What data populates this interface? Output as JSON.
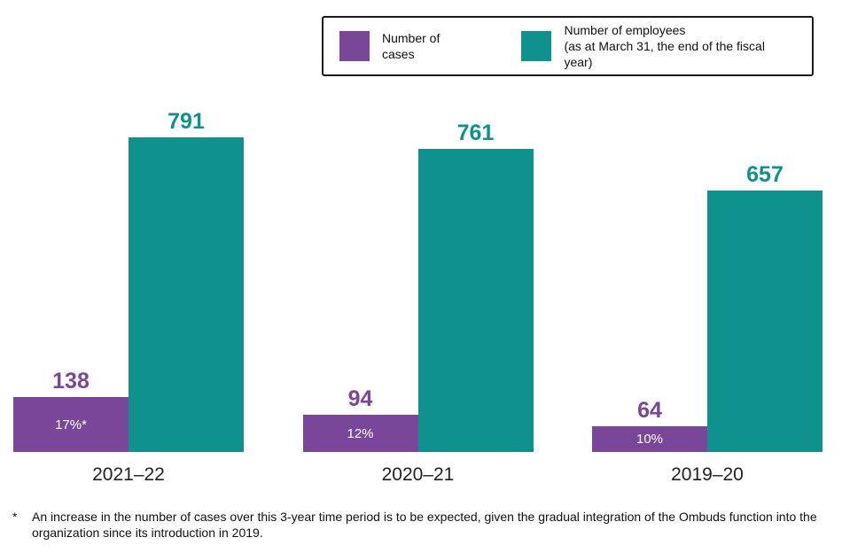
{
  "legend": {
    "items": [
      {
        "label_line1": "Number of cases",
        "label_line2": "",
        "color": "#7A4699"
      },
      {
        "label_line1": "Number of employees",
        "label_line2": "(as at March 31, the end of the fiscal year)",
        "color": "#0F928E"
      }
    ]
  },
  "chart_data": {
    "type": "bar",
    "categories": [
      "2021–22",
      "2020–21",
      "2019–20"
    ],
    "series": [
      {
        "name": "Number of cases",
        "color": "#7A4699",
        "values": [
          138,
          94,
          64
        ],
        "bar_labels": [
          "17%*",
          "12%",
          "10%"
        ]
      },
      {
        "name": "Number of employees (as at March 31, the end of the fiscal year)",
        "color": "#0F928E",
        "values": [
          791,
          761,
          657
        ]
      }
    ],
    "ylim": [
      0,
      800
    ],
    "grid": false,
    "legend_position": "top",
    "title": "",
    "xlabel": "",
    "ylabel": ""
  },
  "footnote": {
    "marker": "*",
    "text": "An increase in the number of cases over this 3-year time period is to be expected, given the gradual integration of the Ombuds function into the organization since its introduction in 2019."
  }
}
